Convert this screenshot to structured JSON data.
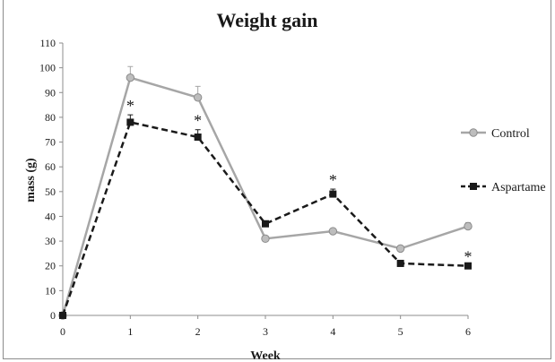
{
  "chart_data": {
    "type": "line",
    "title": "Weight gain",
    "xlabel": "Week",
    "ylabel": "mass (g)",
    "x": [
      0,
      1,
      2,
      3,
      4,
      5,
      6
    ],
    "xlim": [
      0,
      6
    ],
    "ylim": [
      0,
      110
    ],
    "yticks": [
      0,
      10,
      20,
      30,
      40,
      50,
      60,
      70,
      80,
      90,
      100,
      110
    ],
    "grid": false,
    "legend_position": "right",
    "series": [
      {
        "name": "Control",
        "values": [
          0,
          96,
          88,
          31,
          34,
          27,
          36
        ],
        "error": [
          0,
          4.5,
          4.5,
          0,
          0,
          0,
          1.5
        ],
        "color": "#a6a6a6",
        "marker": "circle",
        "line_style": "solid"
      },
      {
        "name": "Aspartame",
        "values": [
          0,
          78,
          72,
          37,
          49,
          21,
          20
        ],
        "error": [
          0,
          3,
          3,
          0,
          2,
          0,
          0
        ],
        "color": "#1a1a1a",
        "marker": "square",
        "line_style": "dashed"
      }
    ],
    "annotations": [
      {
        "x": 1,
        "text": "*"
      },
      {
        "x": 2,
        "text": "*"
      },
      {
        "x": 4,
        "text": "*"
      },
      {
        "x": 6,
        "text": "*"
      }
    ]
  }
}
